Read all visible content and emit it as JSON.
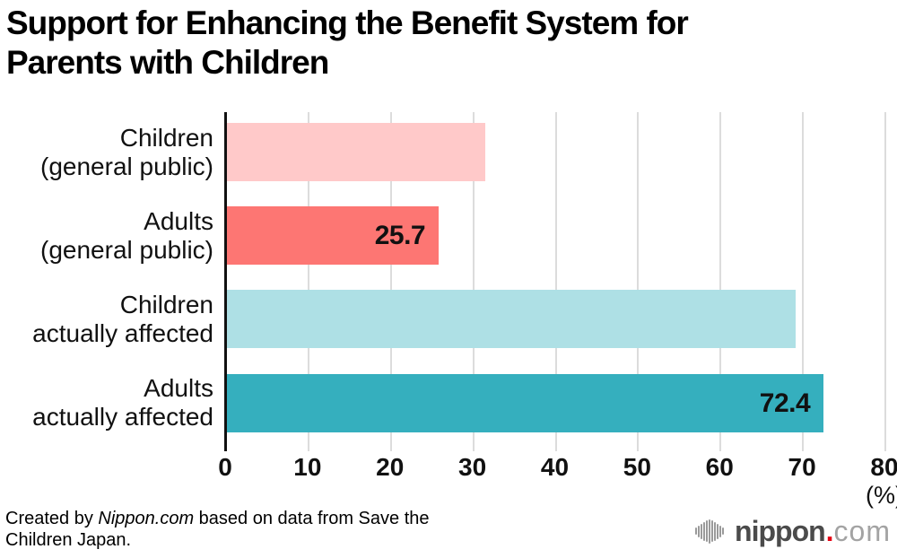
{
  "title": {
    "full": "Support for Enhancing the Benefit System for Parents with Children",
    "line1": "Support for Enhancing the Benefit System for",
    "line2": "Parents with Children"
  },
  "chart_data": {
    "type": "bar",
    "orientation": "horizontal",
    "title": "Support for Enhancing the Benefit System for Parents with Children",
    "categories": [
      "Children (general public)",
      "Adults (general public)",
      "Children actually affected",
      "Adults actually affected"
    ],
    "category_lines": [
      [
        "Children",
        "(general public)"
      ],
      [
        "Adults",
        "(general public)"
      ],
      [
        "Children",
        "actually affected"
      ],
      [
        "Adults",
        "actually affected"
      ]
    ],
    "values": [
      31.4,
      25.7,
      69.0,
      72.4
    ],
    "value_labels": [
      "",
      "25.7",
      "",
      "72.4"
    ],
    "bar_colors": [
      "#FFC9C9",
      "#FD7673",
      "#AEE0E5",
      "#35AFBE"
    ],
    "xlabel": "(%)",
    "xlim": [
      0,
      80
    ],
    "xticks": [
      "0",
      "10",
      "20",
      "30",
      "40",
      "50",
      "60",
      "70",
      "80"
    ],
    "grid": true,
    "legend": false,
    "gridline_color": "#dcdcdc",
    "axis_color": "#111111"
  },
  "footer": {
    "credit_prefix": "Created by ",
    "credit_source": "Nippon.com",
    "credit_suffix": " based on data from Save the Children Japan."
  },
  "logo": {
    "icon": "soundwave-circle-icon",
    "name": "nippon",
    "dot": ".",
    "tld": "com",
    "name_color": "#4b4b4b",
    "dot_color": "#e60012",
    "tld_color": "#a3a3a3"
  }
}
